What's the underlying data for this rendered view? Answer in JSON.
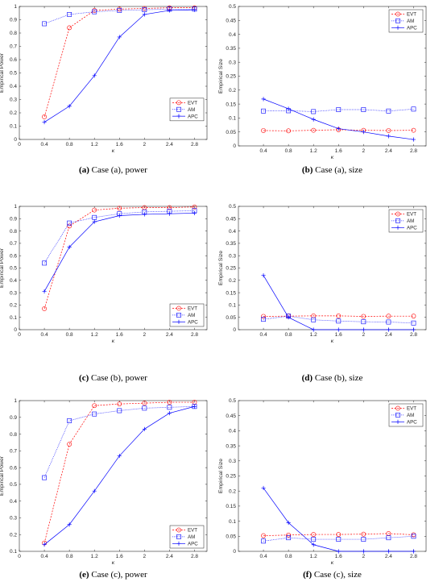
{
  "figure": {
    "background": "#ffffff"
  },
  "style": {
    "series_styles": {
      "EVT": {
        "color": "#ff0000",
        "dash": "2,1.6",
        "marker": "circle"
      },
      "AM": {
        "color": "#0000ff",
        "dash": "0.8,1.2",
        "marker": "square"
      },
      "APC": {
        "color": "#0000ff",
        "dash": "",
        "marker": "plus"
      }
    }
  },
  "chart_data": [
    {
      "id": "a-power",
      "type": "line",
      "caption_label": "(a)",
      "caption_text": "Case (a), power",
      "xlabel": "κ",
      "ylabel": "Empirical Power",
      "xlim": [
        0,
        3
      ],
      "ylim": [
        0,
        1
      ],
      "xticks": [
        "0",
        "0.4",
        "0.8",
        "1.2",
        "1.6",
        "2",
        "2.4",
        "2.8"
      ],
      "xtick_values": [
        0,
        0.4,
        0.8,
        1.2,
        1.6,
        2,
        2.4,
        2.8
      ],
      "yticks": [
        "0",
        "0.1",
        "0.2",
        "0.3",
        "0.4",
        "0.5",
        "0.6",
        "0.7",
        "0.8",
        "0.9",
        "1"
      ],
      "ytick_values": [
        0,
        0.1,
        0.2,
        0.3,
        0.4,
        0.5,
        0.6,
        0.7,
        0.8,
        0.9,
        1
      ],
      "legend_position": "middle-right",
      "x": [
        0.4,
        0.8,
        1.2,
        1.6,
        2,
        2.4,
        2.8
      ],
      "series": [
        {
          "name": "EVT",
          "values": [
            0.17,
            0.84,
            0.97,
            0.98,
            0.985,
            0.99,
            0.99
          ]
        },
        {
          "name": "AM",
          "values": [
            0.87,
            0.94,
            0.96,
            0.97,
            0.975,
            0.98,
            0.98
          ]
        },
        {
          "name": "APC",
          "values": [
            0.13,
            0.25,
            0.48,
            0.77,
            0.94,
            0.97,
            0.975
          ]
        }
      ]
    },
    {
      "id": "a-size",
      "type": "line",
      "caption_label": "(b)",
      "caption_text": "Case (a), size",
      "xlabel": "κ",
      "ylabel": "Empirical Size",
      "xlim": [
        0,
        3
      ],
      "ylim": [
        0,
        0.5
      ],
      "xticks": [
        "0.4",
        "0.8",
        "1.2",
        "1.6",
        "2",
        "2.4",
        "2.8"
      ],
      "xtick_values": [
        0.4,
        0.8,
        1.2,
        1.6,
        2,
        2.4,
        2.8
      ],
      "yticks": [
        "0",
        "0.05",
        "0.1",
        "0.15",
        "0.2",
        "0.25",
        "0.3",
        "0.35",
        "0.4",
        "0.45",
        "0.5"
      ],
      "ytick_values": [
        0,
        0.05,
        0.1,
        0.15,
        0.2,
        0.25,
        0.3,
        0.35,
        0.4,
        0.45,
        0.5
      ],
      "legend_position": "top-right",
      "x": [
        0.4,
        0.8,
        1.2,
        1.6,
        2,
        2.4,
        2.8
      ],
      "series": [
        {
          "name": "EVT",
          "values": [
            0.055,
            0.054,
            0.056,
            0.058,
            0.056,
            0.055,
            0.056
          ]
        },
        {
          "name": "AM",
          "values": [
            0.125,
            0.126,
            0.123,
            0.13,
            0.13,
            0.125,
            0.132
          ]
        },
        {
          "name": "APC",
          "values": [
            0.168,
            0.133,
            0.095,
            0.062,
            0.05,
            0.035,
            0.023
          ]
        }
      ]
    },
    {
      "id": "b-power",
      "type": "line",
      "caption_label": "(c)",
      "caption_text": "Case (b), power",
      "xlabel": "κ",
      "ylabel": "Empirical Power",
      "xlim": [
        0,
        3
      ],
      "ylim": [
        0,
        1
      ],
      "xticks": [
        "0",
        "0.4",
        "0.8",
        "1.2",
        "1.6",
        "2",
        "2.4",
        "2.8"
      ],
      "xtick_values": [
        0,
        0.4,
        0.8,
        1.2,
        1.6,
        2,
        2.4,
        2.8
      ],
      "yticks": [
        "0",
        "0.1",
        "0.2",
        "0.3",
        "0.4",
        "0.5",
        "0.6",
        "0.7",
        "0.8",
        "0.9",
        "1"
      ],
      "ytick_values": [
        0,
        0.1,
        0.2,
        0.3,
        0.4,
        0.5,
        0.6,
        0.7,
        0.8,
        0.9,
        1
      ],
      "legend_position": "bottom-right",
      "x": [
        0.4,
        0.8,
        1.2,
        1.6,
        2,
        2.4,
        2.8
      ],
      "series": [
        {
          "name": "EVT",
          "values": [
            0.17,
            0.84,
            0.97,
            0.985,
            0.99,
            0.99,
            0.995
          ]
        },
        {
          "name": "AM",
          "values": [
            0.54,
            0.865,
            0.91,
            0.94,
            0.955,
            0.96,
            0.965
          ]
        },
        {
          "name": "APC",
          "values": [
            0.31,
            0.67,
            0.875,
            0.925,
            0.935,
            0.94,
            0.945
          ]
        }
      ]
    },
    {
      "id": "b-size",
      "type": "line",
      "caption_label": "(d)",
      "caption_text": "Case (b), size",
      "xlabel": "κ",
      "ylabel": "Empirical Size",
      "xlim": [
        0,
        3
      ],
      "ylim": [
        0,
        0.5
      ],
      "xticks": [
        "0.4",
        "0.8",
        "1.2",
        "1.6",
        "2",
        "2.4",
        "2.8"
      ],
      "xtick_values": [
        0.4,
        0.8,
        1.2,
        1.6,
        2,
        2.4,
        2.8
      ],
      "yticks": [
        "0",
        "0.05",
        "0.1",
        "0.15",
        "0.2",
        "0.25",
        "0.3",
        "0.35",
        "0.4",
        "0.45",
        "0.5"
      ],
      "ytick_values": [
        0,
        0.05,
        0.1,
        0.15,
        0.2,
        0.25,
        0.3,
        0.35,
        0.4,
        0.45,
        0.5
      ],
      "legend_position": "top-right",
      "x": [
        0.4,
        0.8,
        1.2,
        1.6,
        2,
        2.4,
        2.8
      ],
      "series": [
        {
          "name": "EVT",
          "values": [
            0.054,
            0.055,
            0.056,
            0.056,
            0.054,
            0.055,
            0.055
          ]
        },
        {
          "name": "AM",
          "values": [
            0.042,
            0.055,
            0.04,
            0.035,
            0.032,
            0.031,
            0.027
          ]
        },
        {
          "name": "APC",
          "values": [
            0.22,
            0.05,
            0.0,
            0.0,
            0.0,
            0.0,
            0.0
          ]
        }
      ]
    },
    {
      "id": "c-power",
      "type": "line",
      "caption_label": "(e)",
      "caption_text": "Case (c), power",
      "xlabel": "κ",
      "ylabel": "Empirical Power",
      "xlim": [
        0,
        3
      ],
      "ylim": [
        0.1,
        1
      ],
      "xticks": [
        "0",
        "0.4",
        "0.8",
        "1.2",
        "1.6",
        "2",
        "2.4",
        "2.8"
      ],
      "xtick_values": [
        0,
        0.4,
        0.8,
        1.2,
        1.6,
        2,
        2.4,
        2.8
      ],
      "yticks": [
        "0.1",
        "0.2",
        "0.3",
        "0.4",
        "0.5",
        "0.6",
        "0.7",
        "0.8",
        "0.9",
        "1"
      ],
      "ytick_values": [
        0.1,
        0.2,
        0.3,
        0.4,
        0.5,
        0.6,
        0.7,
        0.8,
        0.9,
        1
      ],
      "legend_position": "bottom-right",
      "x": [
        0.4,
        0.8,
        1.2,
        1.6,
        2,
        2.4,
        2.8
      ],
      "series": [
        {
          "name": "EVT",
          "values": [
            0.15,
            0.74,
            0.97,
            0.98,
            0.985,
            0.99,
            0.99
          ]
        },
        {
          "name": "AM",
          "values": [
            0.54,
            0.88,
            0.92,
            0.94,
            0.955,
            0.96,
            0.965
          ]
        },
        {
          "name": "APC",
          "values": [
            0.14,
            0.26,
            0.46,
            0.67,
            0.83,
            0.925,
            0.965
          ]
        }
      ]
    },
    {
      "id": "c-size",
      "type": "line",
      "caption_label": "(f)",
      "caption_text": "Case (c), size",
      "xlabel": "κ",
      "ylabel": "Empirical Size",
      "xlim": [
        0,
        3
      ],
      "ylim": [
        0,
        0.5
      ],
      "xticks": [
        "0.4",
        "0.8",
        "1.2",
        "1.6",
        "2",
        "2.4",
        "2.8"
      ],
      "xtick_values": [
        0.4,
        0.8,
        1.2,
        1.6,
        2,
        2.4,
        2.8
      ],
      "yticks": [
        "0",
        "0.05",
        "0.1",
        "0.15",
        "0.2",
        "0.25",
        "0.3",
        "0.35",
        "0.4",
        "0.45",
        "0.5"
      ],
      "ytick_values": [
        0,
        0.05,
        0.1,
        0.15,
        0.2,
        0.25,
        0.3,
        0.35,
        0.4,
        0.45,
        0.5
      ],
      "legend_position": "top-right",
      "x": [
        0.4,
        0.8,
        1.2,
        1.6,
        2,
        2.4,
        2.8
      ],
      "series": [
        {
          "name": "EVT",
          "values": [
            0.052,
            0.054,
            0.056,
            0.056,
            0.057,
            0.059,
            0.055
          ]
        },
        {
          "name": "AM",
          "values": [
            0.034,
            0.045,
            0.04,
            0.04,
            0.04,
            0.045,
            0.05
          ]
        },
        {
          "name": "APC",
          "values": [
            0.21,
            0.095,
            0.022,
            0.0,
            0.0,
            0.0,
            0.0
          ]
        }
      ]
    }
  ]
}
